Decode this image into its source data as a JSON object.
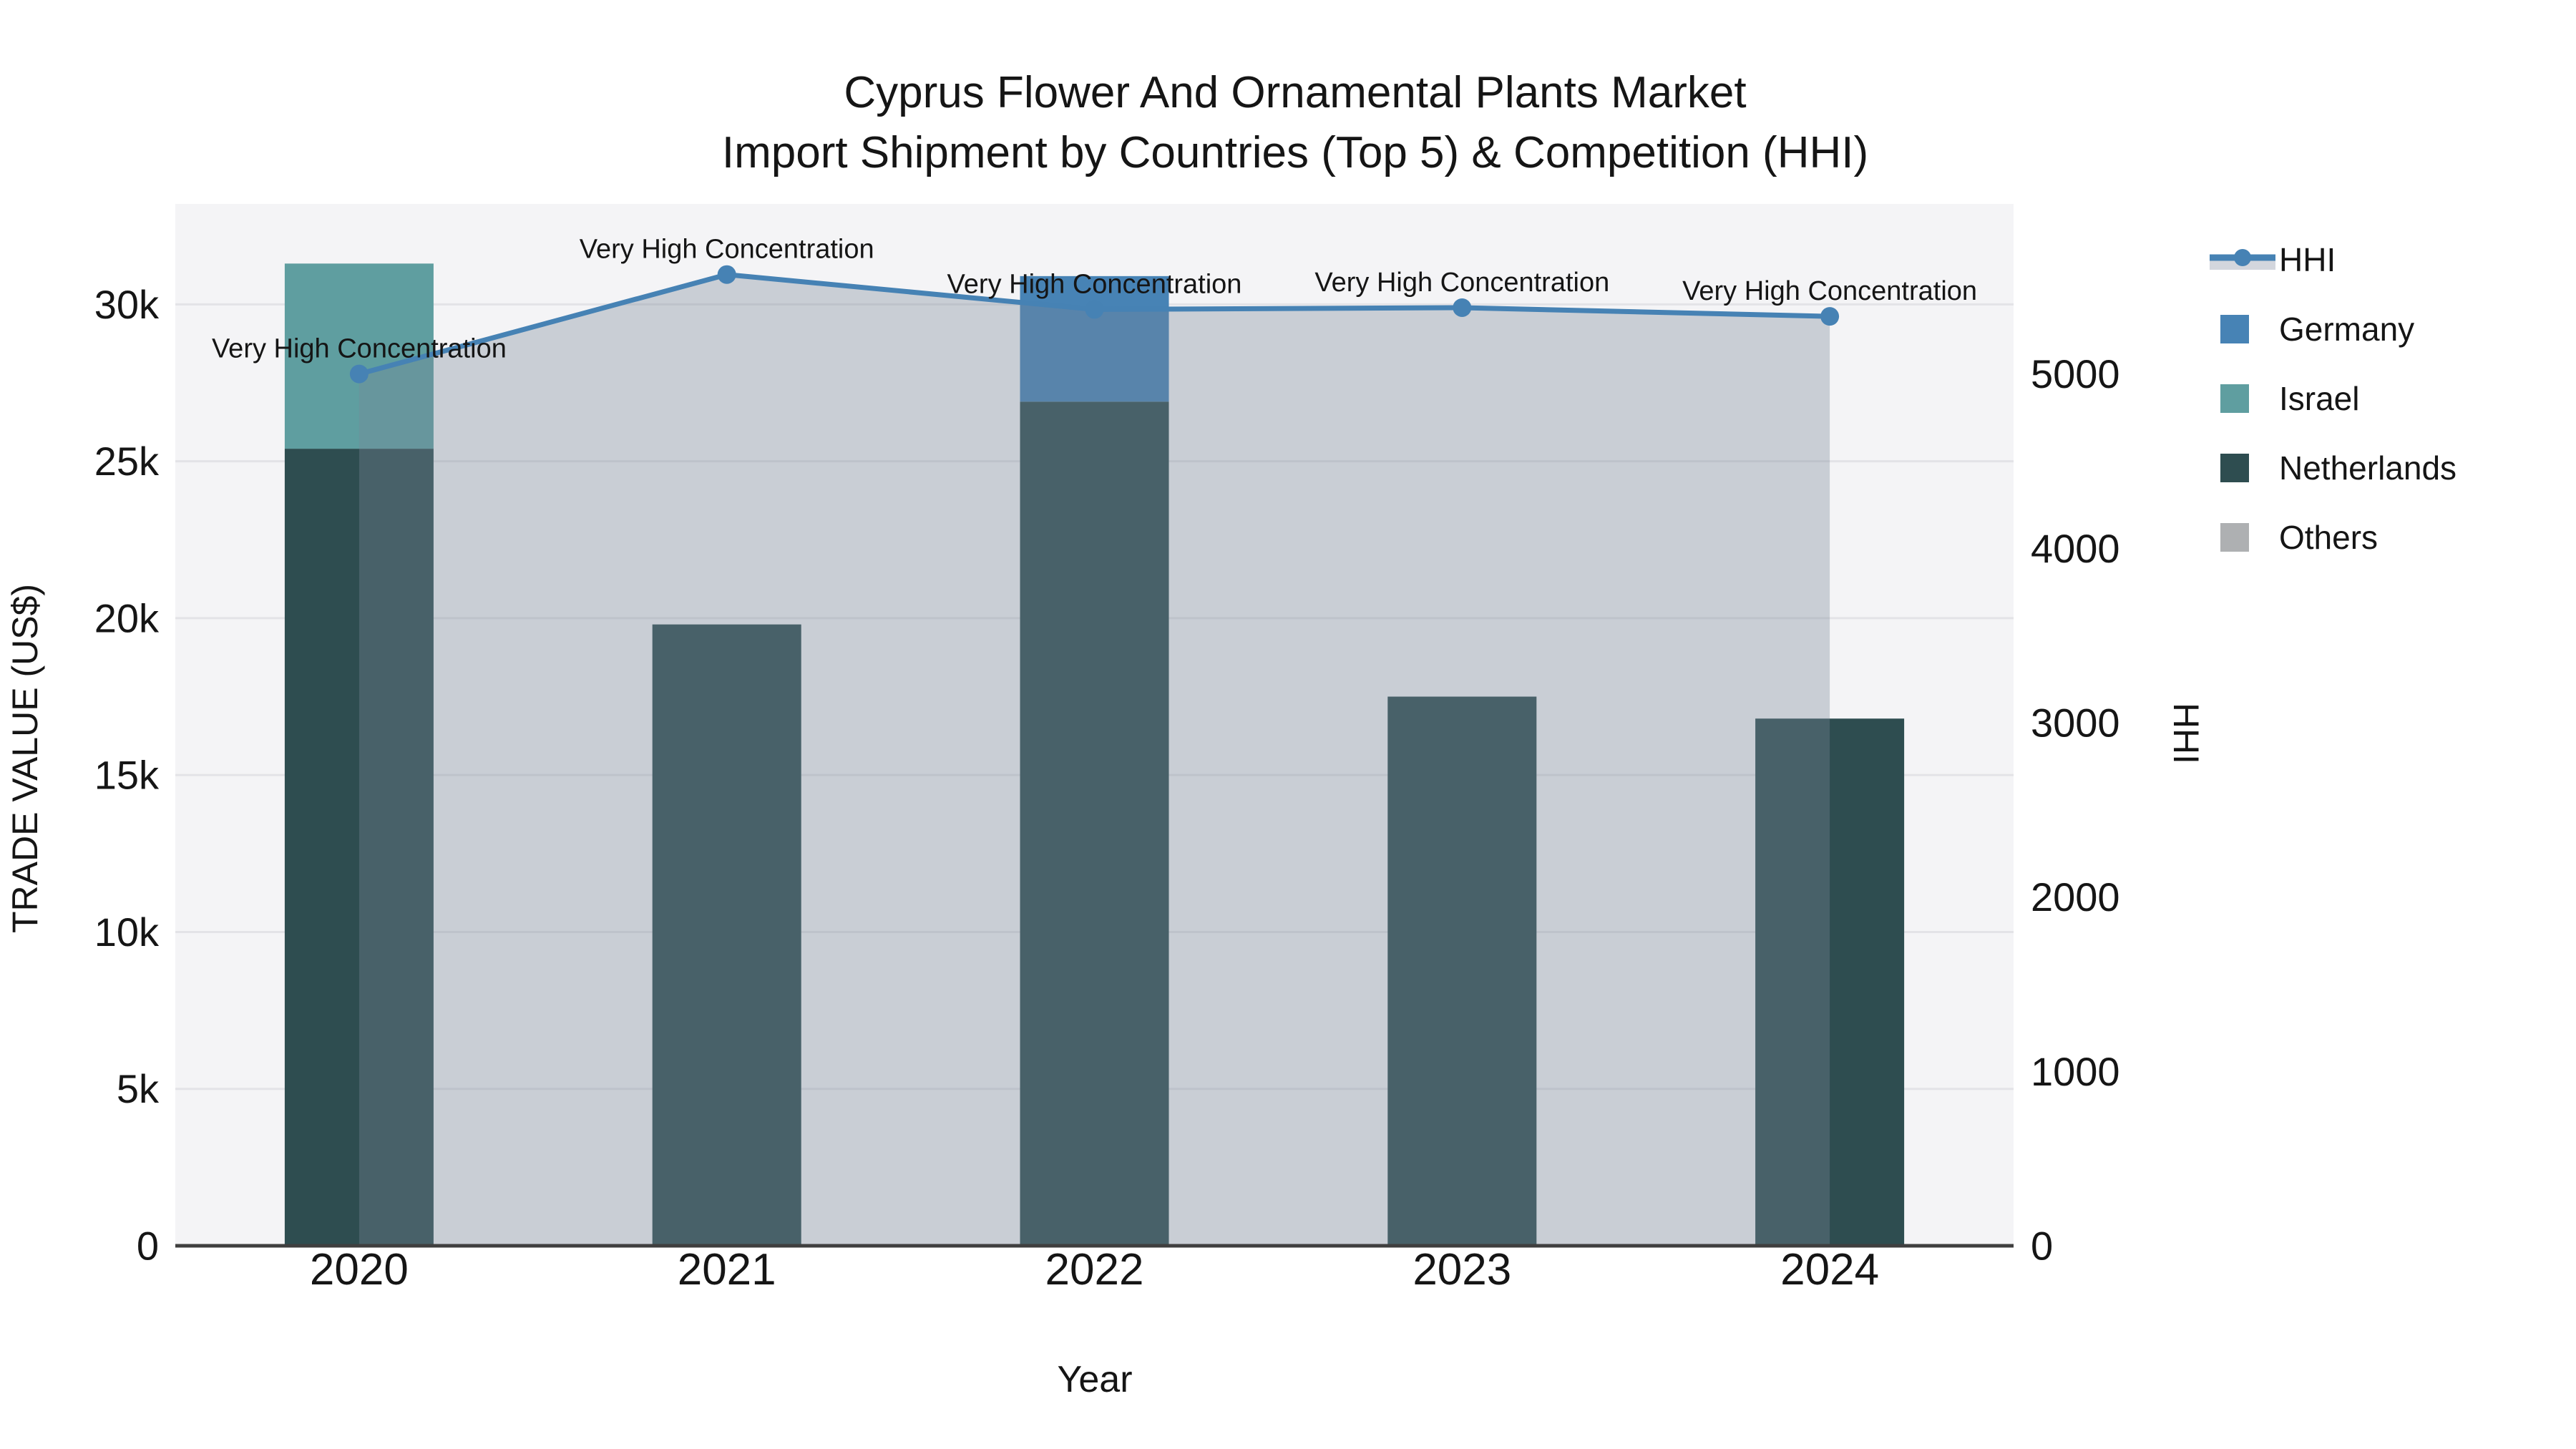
{
  "title": {
    "line1": "Cyprus Flower And Ornamental Plants Market",
    "line2": "Import Shipment by Countries (Top 5) & Competition (HHI)"
  },
  "axes": {
    "x_title": "Year",
    "y_left_title": "TRADE VALUE (US$)",
    "y_right_title": "HHI"
  },
  "legend": {
    "items": [
      {
        "label": "HHI",
        "type": "line",
        "color": "#4682b4",
        "fill_sample": "#d3d6dd"
      },
      {
        "label": "Germany",
        "type": "bar",
        "color": "#4783b5"
      },
      {
        "label": "Israel",
        "type": "bar",
        "color": "#5f9ea0"
      },
      {
        "label": "Netherlands",
        "type": "bar",
        "color": "#2e4d50"
      },
      {
        "label": "Others",
        "type": "bar",
        "color": "#aeb0b2"
      }
    ]
  },
  "chart_data": {
    "type": "combo bar+line",
    "title": "Cyprus Flower And Ornamental Plants Market — Import Shipment by Countries (Top 5) & Competition (HHI)",
    "categories": [
      "2020",
      "2021",
      "2022",
      "2023",
      "2024"
    ],
    "bar_series": [
      {
        "name": "Netherlands",
        "color": "#2e4d50",
        "values": [
          25400,
          19800,
          26900,
          17500,
          16800
        ]
      },
      {
        "name": "Israel",
        "color": "#5f9ea0",
        "values": [
          5900,
          0,
          0,
          0,
          0
        ]
      },
      {
        "name": "Germany",
        "color": "#4783b5",
        "values": [
          0,
          0,
          4000,
          0,
          0
        ]
      },
      {
        "name": "Others",
        "color": "#aeb0b2",
        "values": [
          0,
          0,
          0,
          0,
          0
        ]
      }
    ],
    "stack_order": "bottom-to-top: Netherlands, Israel, Germany, Others",
    "line_series": {
      "name": "HHI",
      "axis": "right",
      "color": "#4682b4",
      "fill": "rgba(119,136,153,0.35)",
      "values": [
        5000,
        5570,
        5370,
        5380,
        5330
      ]
    },
    "annotations": [
      {
        "text": "Very High Concentration",
        "x": "2020"
      },
      {
        "text": "Very High Concentration",
        "x": "2021"
      },
      {
        "text": "Very High Concentration",
        "x": "2022"
      },
      {
        "text": "Very High Concentration",
        "x": "2023"
      },
      {
        "text": "Very High Concentration",
        "x": "2024"
      }
    ],
    "xlabel": "Year",
    "ylabel": "TRADE VALUE (US$)",
    "ylabel_right": "HHI",
    "y_left": {
      "ticks": [
        0,
        5000,
        10000,
        15000,
        20000,
        25000,
        30000
      ],
      "tick_labels": [
        "0",
        "5k",
        "10k",
        "15k",
        "20k",
        "25k",
        "30k"
      ],
      "max": 33200
    },
    "y_right": {
      "ticks": [
        0,
        1000,
        2000,
        3000,
        4000,
        5000
      ],
      "tick_labels": [
        "0",
        "1000",
        "2000",
        "3000",
        "4000",
        "5000"
      ],
      "max": 5975
    },
    "grid": true,
    "legend_position": "right",
    "plot_bg": "#f4f4f6",
    "grid_color": "#e3e3e7",
    "axis_line_color": "#3f3f3f"
  }
}
